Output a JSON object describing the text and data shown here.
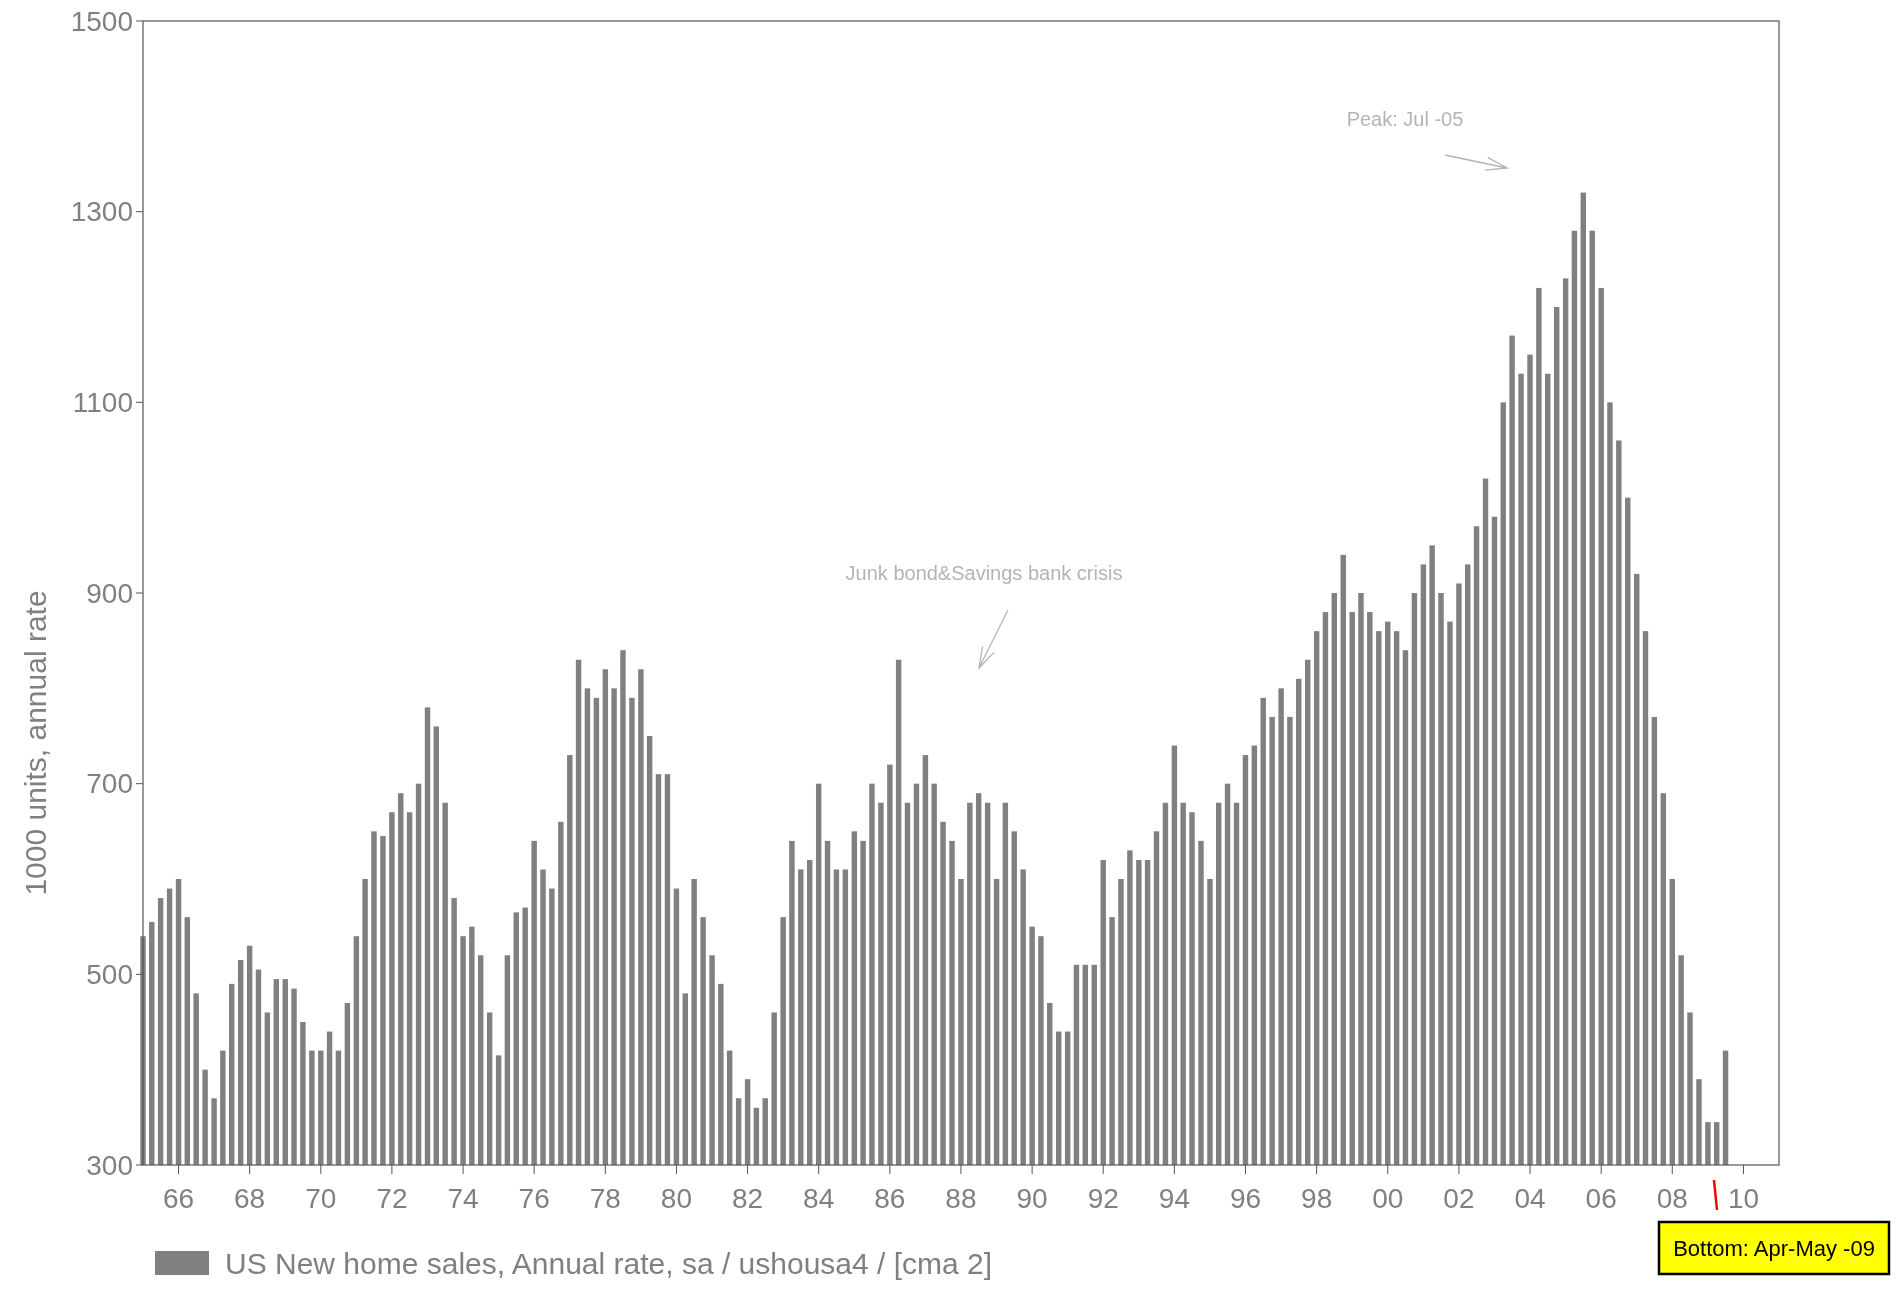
{
  "chart_data": {
    "type": "bar",
    "ylabel": "1000 units, annual rate",
    "legend": "bottom",
    "grid": false,
    "xlim": [
      "1965-01",
      "2011-01"
    ],
    "ylim": [
      300,
      1500
    ],
    "yticks": [
      300,
      500,
      700,
      900,
      1100,
      1300,
      1500
    ],
    "xticks": [
      {
        "value": "1966",
        "label": "66"
      },
      {
        "value": "1968",
        "label": "68"
      },
      {
        "value": "1970",
        "label": "70"
      },
      {
        "value": "1972",
        "label": "72"
      },
      {
        "value": "1974",
        "label": "74"
      },
      {
        "value": "1976",
        "label": "76"
      },
      {
        "value": "1978",
        "label": "78"
      },
      {
        "value": "1980",
        "label": "80"
      },
      {
        "value": "1982",
        "label": "82"
      },
      {
        "value": "1984",
        "label": "84"
      },
      {
        "value": "1986",
        "label": "86"
      },
      {
        "value": "1988",
        "label": "88"
      },
      {
        "value": "1990",
        "label": "90"
      },
      {
        "value": "1992",
        "label": "92"
      },
      {
        "value": "1994",
        "label": "94"
      },
      {
        "value": "1996",
        "label": "96"
      },
      {
        "value": "1998",
        "label": "98"
      },
      {
        "value": "2000",
        "label": "00"
      },
      {
        "value": "2002",
        "label": "02"
      },
      {
        "value": "2004",
        "label": "04"
      },
      {
        "value": "2006",
        "label": "06"
      },
      {
        "value": "2008",
        "label": "08"
      },
      {
        "value": "2010",
        "label": "10"
      }
    ],
    "x": [
      "1965-01",
      "1965-04",
      "1965-07",
      "1965-10",
      "1966-01",
      "1966-04",
      "1966-07",
      "1966-10",
      "1967-01",
      "1967-04",
      "1967-07",
      "1967-10",
      "1968-01",
      "1968-04",
      "1968-07",
      "1968-10",
      "1969-01",
      "1969-04",
      "1969-07",
      "1969-10",
      "1970-01",
      "1970-04",
      "1970-07",
      "1970-10",
      "1971-01",
      "1971-04",
      "1971-07",
      "1971-10",
      "1972-01",
      "1972-04",
      "1972-07",
      "1972-10",
      "1973-01",
      "1973-04",
      "1973-07",
      "1973-10",
      "1974-01",
      "1974-04",
      "1974-07",
      "1974-10",
      "1975-01",
      "1975-04",
      "1975-07",
      "1975-10",
      "1976-01",
      "1976-04",
      "1976-07",
      "1976-10",
      "1977-01",
      "1977-04",
      "1977-07",
      "1977-10",
      "1978-01",
      "1978-04",
      "1978-07",
      "1978-10",
      "1979-01",
      "1979-04",
      "1979-07",
      "1979-10",
      "1980-01",
      "1980-04",
      "1980-07",
      "1980-10",
      "1981-01",
      "1981-04",
      "1981-07",
      "1981-10",
      "1982-01",
      "1982-04",
      "1982-07",
      "1982-10",
      "1983-01",
      "1983-04",
      "1983-07",
      "1983-10",
      "1984-01",
      "1984-04",
      "1984-07",
      "1984-10",
      "1985-01",
      "1985-04",
      "1985-07",
      "1985-10",
      "1986-01",
      "1986-04",
      "1986-07",
      "1986-10",
      "1987-01",
      "1987-04",
      "1987-07",
      "1987-10",
      "1988-01",
      "1988-04",
      "1988-07",
      "1988-10",
      "1989-01",
      "1989-04",
      "1989-07",
      "1989-10",
      "1990-01",
      "1990-04",
      "1990-07",
      "1990-10",
      "1991-01",
      "1991-04",
      "1991-07",
      "1991-10",
      "1992-01",
      "1992-04",
      "1992-07",
      "1992-10",
      "1993-01",
      "1993-04",
      "1993-07",
      "1993-10",
      "1994-01",
      "1994-04",
      "1994-07",
      "1994-10",
      "1995-01",
      "1995-04",
      "1995-07",
      "1995-10",
      "1996-01",
      "1996-04",
      "1996-07",
      "1996-10",
      "1997-01",
      "1997-04",
      "1997-07",
      "1997-10",
      "1998-01",
      "1998-04",
      "1998-07",
      "1998-10",
      "1999-01",
      "1999-04",
      "1999-07",
      "1999-10",
      "2000-01",
      "2000-04",
      "2000-07",
      "2000-10",
      "2001-01",
      "2001-04",
      "2001-07",
      "2001-10",
      "2002-01",
      "2002-04",
      "2002-07",
      "2002-10",
      "2003-01",
      "2003-04",
      "2003-07",
      "2003-10",
      "2004-01",
      "2004-04",
      "2004-07",
      "2004-10",
      "2005-01",
      "2005-04",
      "2005-07",
      "2005-10",
      "2006-01",
      "2006-04",
      "2006-07",
      "2006-10",
      "2007-01",
      "2007-04",
      "2007-07",
      "2007-10",
      "2008-01",
      "2008-04",
      "2008-07",
      "2008-10",
      "2009-01",
      "2009-04",
      "2009-07"
    ],
    "series": [
      {
        "name": "US New home sales, Annual rate, sa / ushousa4 / [cma 2]",
        "color": "#808080",
        "values": [
          540,
          555,
          580,
          590,
          600,
          560,
          480,
          400,
          370,
          420,
          490,
          515,
          530,
          505,
          460,
          495,
          495,
          485,
          450,
          420,
          420,
          440,
          420,
          470,
          540,
          600,
          650,
          645,
          670,
          690,
          670,
          700,
          780,
          760,
          680,
          580,
          540,
          550,
          520,
          460,
          415,
          520,
          565,
          570,
          640,
          610,
          590,
          660,
          730,
          830,
          800,
          790,
          820,
          800,
          840,
          790,
          820,
          750,
          710,
          710,
          590,
          480,
          600,
          560,
          520,
          490,
          420,
          370,
          390,
          360,
          370,
          460,
          560,
          640,
          610,
          620,
          700,
          640,
          610,
          610,
          650,
          640,
          700,
          680,
          720,
          830,
          680,
          700,
          730,
          700,
          660,
          640,
          600,
          680,
          690,
          680,
          600,
          680,
          650,
          610,
          550,
          540,
          470,
          440,
          440,
          510,
          510,
          510,
          620,
          560,
          600,
          630,
          620,
          620,
          650,
          680,
          740,
          680,
          670,
          640,
          600,
          680,
          700,
          680,
          730,
          740,
          790,
          770,
          800,
          770,
          810,
          830,
          860,
          880,
          900,
          940,
          880,
          900,
          880,
          860,
          870,
          860,
          840,
          900,
          930,
          950,
          900,
          870,
          910,
          930,
          970,
          1020,
          980,
          1100,
          1170,
          1130,
          1150,
          1220,
          1130,
          1200,
          1230,
          1280,
          1320,
          1280,
          1220,
          1100,
          1060,
          1000,
          920,
          860,
          770,
          690,
          600,
          520,
          460,
          390,
          345,
          345,
          420
        ]
      }
    ],
    "annotations": [
      "Peak: Jul -05",
      "Junk bond&Savings bank crisis",
      "Bottom: Apr-May -09"
    ]
  }
}
